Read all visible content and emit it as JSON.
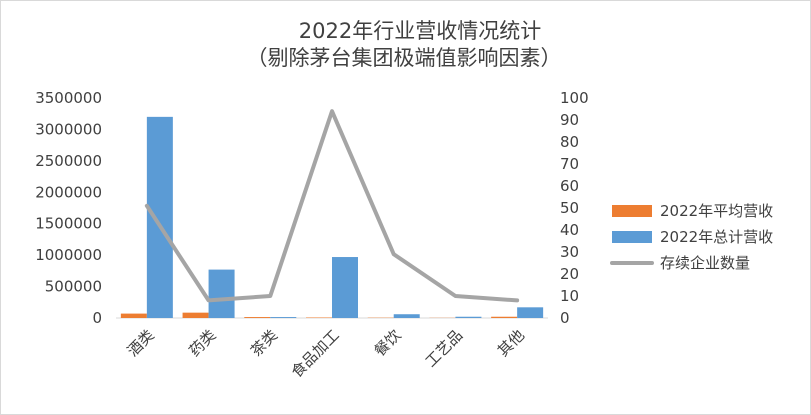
{
  "chart_data": {
    "type": "bar",
    "title": "2022年行业营收情况统计",
    "subtitle": "（剔除茅台集团极端值影响因素）",
    "categories": [
      "酒类",
      "药类",
      "茶类",
      "食品加工",
      "餐饮",
      "工艺品",
      "其他"
    ],
    "series": [
      {
        "name": "2022年平均营收",
        "type": "bar",
        "axis": "left",
        "color": "#ed7d31",
        "values": [
          70000,
          85000,
          15000,
          8000,
          5000,
          3000,
          20000
        ]
      },
      {
        "name": "2022年总计营收",
        "type": "bar",
        "axis": "left",
        "color": "#5b9bd5",
        "values": [
          3200000,
          770000,
          15000,
          970000,
          60000,
          20000,
          170000
        ]
      },
      {
        "name": "存续企业数量",
        "type": "line",
        "axis": "right",
        "color": "#a5a5a5",
        "values": [
          51,
          8,
          10,
          94,
          29,
          10,
          8
        ]
      }
    ],
    "y_left": {
      "min": 0,
      "max": 3500000,
      "ticks": [
        "0",
        "500000",
        "1000000",
        "1500000",
        "2000000",
        "2500000",
        "3000000",
        "3500000"
      ]
    },
    "y_right": {
      "min": 0,
      "max": 100,
      "ticks": [
        "0",
        "10",
        "20",
        "30",
        "40",
        "50",
        "60",
        "70",
        "80",
        "90",
        "100"
      ]
    },
    "grid": false,
    "legend_position": "right"
  }
}
